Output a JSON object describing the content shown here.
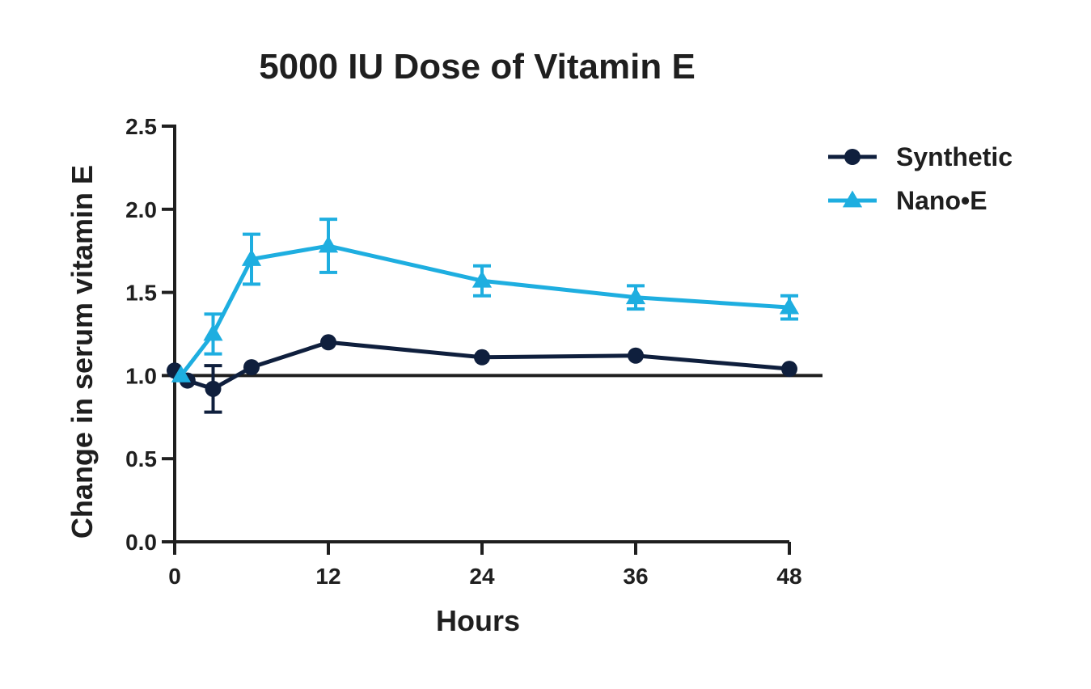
{
  "chart_data": {
    "type": "line",
    "title": "5000 IU Dose of Vitamin E",
    "xlabel": "Hours",
    "ylabel": "Change in serum vitamin E",
    "xlim": [
      0,
      48
    ],
    "ylim": [
      0,
      2.5
    ],
    "x_ticks": [
      "0",
      "12",
      "24",
      "36",
      "48"
    ],
    "y_ticks": [
      "0.0",
      "0.5",
      "1.0",
      "1.5",
      "2.0",
      "2.5"
    ],
    "reference_line_y": 1.0,
    "grid": false,
    "legend_position": "top-right",
    "series": [
      {
        "name": "Synthetic",
        "color": "#0f1f3d",
        "marker": "circle",
        "x": [
          0,
          1,
          3,
          6,
          12,
          24,
          36,
          48
        ],
        "y": [
          1.03,
          0.97,
          0.92,
          1.05,
          1.2,
          1.11,
          1.12,
          1.04
        ],
        "error": [
          0,
          0,
          0.14,
          0,
          0,
          0,
          0,
          0
        ]
      },
      {
        "name": "Nano•E",
        "color": "#1eaee0",
        "marker": "triangle",
        "x": [
          0.5,
          3,
          6,
          12,
          24,
          36,
          48
        ],
        "y": [
          1.0,
          1.25,
          1.7,
          1.78,
          1.57,
          1.47,
          1.41
        ],
        "error": [
          0,
          0.12,
          0.15,
          0.16,
          0.09,
          0.07,
          0.07
        ]
      }
    ]
  }
}
